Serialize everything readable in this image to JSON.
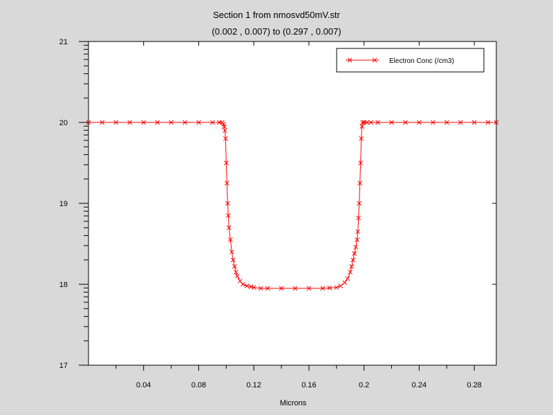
{
  "chart_data": {
    "type": "line",
    "title": "Section 1 from nmosvd50mV.str",
    "subtitle": "(0.002 , 0.007) to (0.297 , 0.007)",
    "xlabel": "Microns",
    "ylabel": "",
    "xlim": [
      0.0,
      0.296
    ],
    "ylim": [
      17,
      21
    ],
    "x_ticks": [
      "0.04",
      "0.08",
      "0.12",
      "0.16",
      "0.2",
      "0.24",
      "0.28"
    ],
    "y_ticks": [
      "17",
      "18",
      "19",
      "20",
      "21"
    ],
    "legend": {
      "position": "top-right"
    },
    "series": [
      {
        "name": "Electron Conc (/cm3)",
        "color": "#ff0000",
        "marker": "x",
        "x": [
          0.0,
          0.01,
          0.02,
          0.03,
          0.04,
          0.05,
          0.06,
          0.07,
          0.08,
          0.09,
          0.095,
          0.097,
          0.098,
          0.0985,
          0.099,
          0.0995,
          0.1,
          0.1005,
          0.101,
          0.1015,
          0.102,
          0.103,
          0.104,
          0.105,
          0.106,
          0.107,
          0.108,
          0.11,
          0.112,
          0.115,
          0.118,
          0.12,
          0.125,
          0.13,
          0.14,
          0.15,
          0.16,
          0.17,
          0.175,
          0.18,
          0.183,
          0.186,
          0.188,
          0.19,
          0.191,
          0.192,
          0.193,
          0.194,
          0.195,
          0.1955,
          0.196,
          0.1965,
          0.197,
          0.1975,
          0.198,
          0.1985,
          0.199,
          0.2,
          0.202,
          0.205,
          0.21,
          0.22,
          0.23,
          0.24,
          0.25,
          0.26,
          0.27,
          0.28,
          0.29,
          0.296
        ],
        "y": [
          20.0,
          20.0,
          20.0,
          20.0,
          20.0,
          20.0,
          20.0,
          20.0,
          20.0,
          20.0,
          20.0,
          20.0,
          19.98,
          19.95,
          19.9,
          19.8,
          19.5,
          19.25,
          19.0,
          18.85,
          18.7,
          18.55,
          18.4,
          18.3,
          18.22,
          18.15,
          18.1,
          18.04,
          18.0,
          17.98,
          17.97,
          17.96,
          17.95,
          17.95,
          17.95,
          17.95,
          17.95,
          17.95,
          17.955,
          17.96,
          17.98,
          18.02,
          18.07,
          18.15,
          18.22,
          18.3,
          18.38,
          18.46,
          18.55,
          18.65,
          18.82,
          19.0,
          19.25,
          19.5,
          19.8,
          19.95,
          20.0,
          20.0,
          20.0,
          20.0,
          20.0,
          20.0,
          20.0,
          20.0,
          20.0,
          20.0,
          20.0,
          20.0,
          20.0,
          20.0
        ]
      }
    ]
  }
}
